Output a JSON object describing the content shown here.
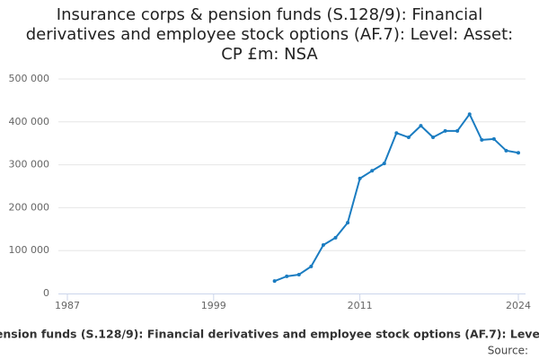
{
  "chart_data": {
    "type": "line",
    "title": "Insurance corps & pension funds (S.128/9): Financial derivatives and employee stock options (AF.7): Level: Asset: CP £m: NSA",
    "x": [
      2004,
      2005,
      2006,
      2007,
      2008,
      2009,
      2010,
      2011,
      2012,
      2013,
      2014,
      2015,
      2016,
      2017,
      2018,
      2019,
      2020,
      2021,
      2022,
      2023,
      2024
    ],
    "series": [
      {
        "name": "Insurance corps & pension funds (S.128/9): Financial derivatives and employee stock options (AF.7): Level: Asset: CP £m: NSA",
        "color": "#1a7cc1",
        "values": [
          29000,
          40000,
          44000,
          63000,
          113000,
          130000,
          165000,
          268000,
          286000,
          303000,
          374000,
          364000,
          391000,
          364000,
          379000,
          379000,
          418000,
          358000,
          360000,
          333000,
          328000
        ]
      }
    ],
    "xlim": [
      1987,
      2024
    ],
    "xticks": [
      1987,
      1999,
      2011,
      2024
    ],
    "ylim": [
      0,
      500000
    ],
    "yticks": [
      0,
      {
        "value": 100000,
        "label": "100 000"
      },
      {
        "value": 200000,
        "label": "200 000"
      },
      {
        "value": 300000,
        "label": "300 000"
      },
      {
        "value": 400000,
        "label": "400 000"
      },
      {
        "value": 500000,
        "label": "500 000"
      }
    ],
    "grid": true,
    "source": "Source:"
  }
}
